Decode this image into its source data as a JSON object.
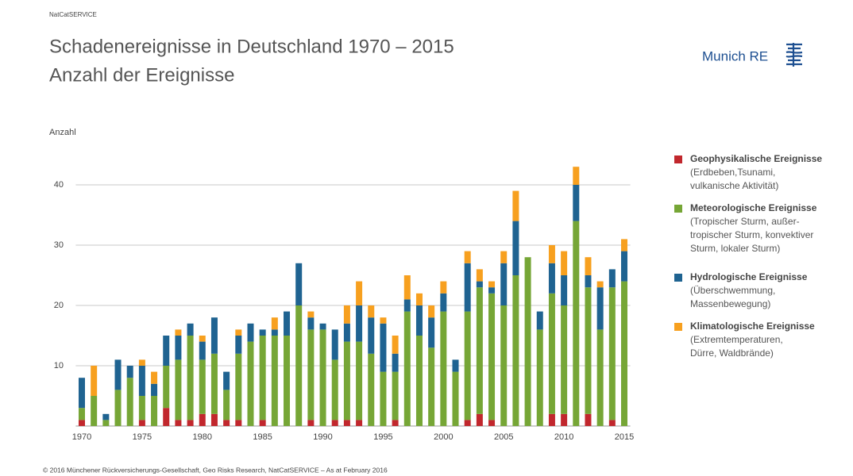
{
  "header": {
    "source_tag": "NatCatSERVICE",
    "title": "Schadenereignisse in Deutschland 1970 – 2015",
    "subtitle": "Anzahl der Ereignisse",
    "logo": "Munich RE"
  },
  "chart_data": {
    "type": "stacked-bar",
    "y_label": "Anzahl",
    "x": [
      1970,
      1971,
      1972,
      1973,
      1974,
      1975,
      1976,
      1977,
      1978,
      1979,
      1980,
      1981,
      1982,
      1983,
      1984,
      1985,
      1986,
      1987,
      1988,
      1989,
      1990,
      1991,
      1992,
      1993,
      1994,
      1995,
      1996,
      1997,
      1998,
      1999,
      2000,
      2001,
      2002,
      2003,
      2004,
      2005,
      2006,
      2007,
      2008,
      2009,
      2010,
      2011,
      2012,
      2013,
      2014,
      2015
    ],
    "xlim": [
      1969.5,
      2015.5
    ],
    "xticks": [
      1970,
      1975,
      1980,
      1985,
      1990,
      1995,
      2000,
      2005,
      2010,
      2015
    ],
    "ylim": [
      0,
      45
    ],
    "yticks": [
      10,
      20,
      30,
      40
    ],
    "grid": true,
    "series": [
      {
        "name": "Geophysikalische Ereignisse",
        "description": [
          "(Erdbeben,Tsunami,",
          "vulkanische Aktivität)"
        ],
        "color": "#c1272d",
        "values": [
          1,
          0,
          0,
          0,
          0,
          1,
          0,
          3,
          1,
          1,
          2,
          2,
          1,
          1,
          0,
          1,
          0,
          0,
          0,
          1,
          0,
          1,
          1,
          1,
          0,
          0,
          1,
          0,
          0,
          0,
          0,
          0,
          1,
          2,
          1,
          0,
          0,
          0,
          0,
          2,
          2,
          0,
          2,
          0,
          1,
          0
        ]
      },
      {
        "name": "Meteorologische Ereignisse",
        "description": [
          "(Tropischer Sturm, außer-",
          "tropischer Sturm, konvektiver",
          "Sturm, lokaler Sturm)"
        ],
        "color": "#76a636",
        "values": [
          2,
          5,
          1,
          6,
          8,
          4,
          5,
          7,
          10,
          14,
          9,
          10,
          5,
          11,
          14,
          14,
          15,
          15,
          20,
          15,
          16,
          10,
          13,
          13,
          12,
          9,
          8,
          19,
          15,
          13,
          19,
          9,
          18,
          21,
          21,
          20,
          25,
          28,
          16,
          20,
          18,
          34,
          21,
          16,
          22,
          24
        ]
      },
      {
        "name": "Hydrologische Ereignisse",
        "description": [
          "(Überschwemmung,",
          "Massenbewegung)"
        ],
        "color": "#1f6391",
        "values": [
          5,
          0,
          1,
          5,
          2,
          5,
          2,
          5,
          4,
          2,
          3,
          6,
          3,
          3,
          3,
          1,
          1,
          4,
          7,
          2,
          1,
          5,
          3,
          6,
          6,
          8,
          3,
          2,
          5,
          5,
          3,
          2,
          8,
          1,
          1,
          7,
          9,
          0,
          3,
          5,
          5,
          6,
          2,
          7,
          3,
          5
        ]
      },
      {
        "name": "Klimatologische Ereignisse",
        "description": [
          "(Extremtemperaturen,",
          "Dürre, Waldbrände)"
        ],
        "color": "#f7a01f",
        "values": [
          0,
          5,
          0,
          0,
          0,
          1,
          2,
          0,
          1,
          0,
          1,
          0,
          0,
          1,
          0,
          0,
          2,
          0,
          0,
          1,
          0,
          0,
          3,
          4,
          2,
          1,
          3,
          4,
          2,
          2,
          2,
          0,
          2,
          2,
          1,
          2,
          5,
          0,
          0,
          3,
          4,
          3,
          3,
          1,
          0,
          2
        ]
      }
    ]
  },
  "footer": "© 2016 Münchener Rückversicherungs-Gesellschaft, Geo Risks Research, NatCatSERVICE – As at February 2016"
}
